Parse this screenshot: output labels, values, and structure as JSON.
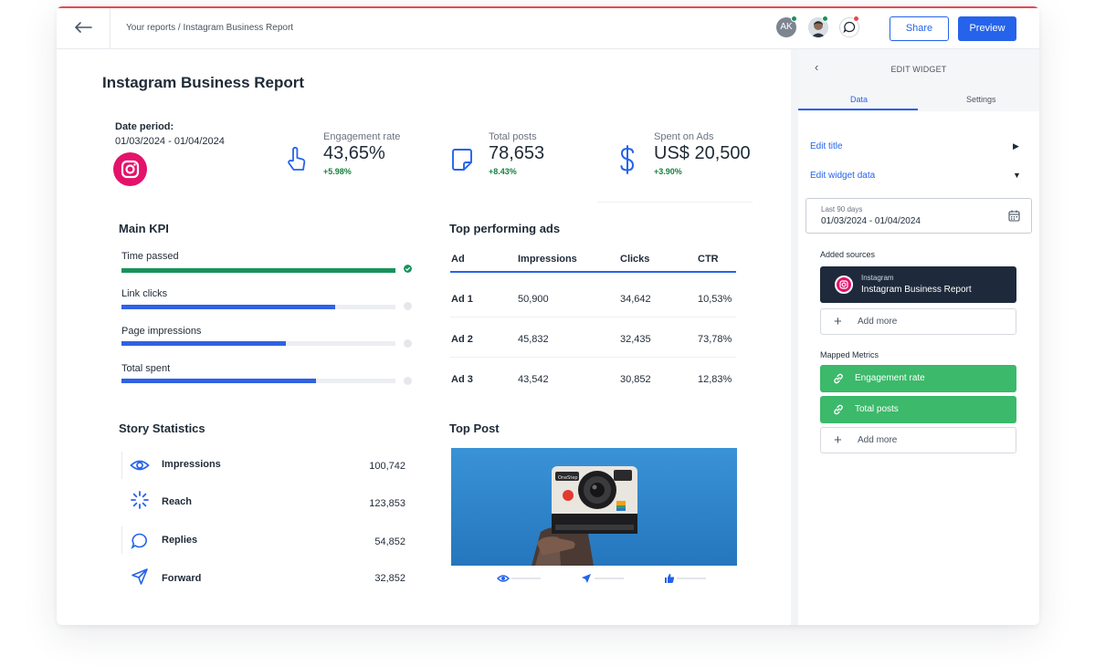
{
  "topbar": {
    "breadcrumb": "Your reports / Instagram Business Report",
    "avatar_initials": "AK",
    "share_label": "Share",
    "preview_label": "Preview"
  },
  "report": {
    "title": "Instagram Business Report",
    "date_period_label": "Date period:",
    "date_period_value": "01/03/2024 - 01/04/2024"
  },
  "stats": [
    {
      "label": "Engagement rate",
      "value": "43,65%",
      "change": "+5.98%",
      "icon": "pointer-hand-icon"
    },
    {
      "label": "Total posts",
      "value": "78,653",
      "change": "+8.43%",
      "icon": "sticky-note-icon"
    },
    {
      "label": "Spent on Ads",
      "value": "US$ 20,500",
      "change": "+3.90%",
      "icon": "dollar-icon"
    }
  ],
  "main_kpi": {
    "title": "Main KPI",
    "items": [
      {
        "label": "Time passed",
        "progress": 1.0,
        "color": "#16935b",
        "done": true
      },
      {
        "label": "Link clicks",
        "progress": 0.78,
        "color": "#2f62e2",
        "done": false
      },
      {
        "label": "Page impressions",
        "progress": 0.6,
        "color": "#2f62e2",
        "done": false
      },
      {
        "label": "Total spent",
        "progress": 0.71,
        "color": "#2f62e2",
        "done": false
      }
    ]
  },
  "top_ads": {
    "title": "Top performing ads",
    "columns": [
      "Ad",
      "Impressions",
      "Clicks",
      "CTR"
    ],
    "rows": [
      [
        "Ad 1",
        "50,900",
        "34,642",
        "10,53%"
      ],
      [
        "Ad 2",
        "45,832",
        "32,435",
        "73,78%"
      ],
      [
        "Ad 3",
        "43,542",
        "30,852",
        "12,83%"
      ]
    ]
  },
  "story_statistics": {
    "title": "Story Statistics",
    "items": [
      {
        "label": "Impressions",
        "value": "100,742",
        "icon": "eye-icon"
      },
      {
        "label": "Reach",
        "value": "123,853",
        "icon": "loader-icon"
      },
      {
        "label": "Replies",
        "value": "54,852",
        "icon": "chat-bubble-icon"
      },
      {
        "label": "Forward",
        "value": "32,852",
        "icon": "send-icon"
      }
    ]
  },
  "top_post": {
    "title": "Top Post",
    "image_subject": "hand holding polaroid camera",
    "camera_brand_text": "OneStep"
  },
  "panel": {
    "title": "EDIT WIDGET",
    "tabs": [
      "Data",
      "Settings"
    ],
    "active_tab": "Data",
    "edit_title": "Edit title",
    "edit_widget_data": "Edit widget data",
    "date_range_label": "Last 90 days",
    "date_range_value": "01/03/2024 - 01/04/2024",
    "added_sources_title": "Added sources",
    "source": {
      "type": "Instagram",
      "name": "Instagram Business Report"
    },
    "add_more_label": "Add more",
    "mapped_metrics_title": "Mapped Metrics",
    "metrics": [
      "Engagement rate",
      "Total posts"
    ]
  },
  "colors": {
    "accent": "#2563eb",
    "green": "#16935b",
    "metric_green": "#3cb96a",
    "instagram_pink": "#e4126b",
    "source_card": "#1e2a3b",
    "notification_red": "#e8484e"
  }
}
